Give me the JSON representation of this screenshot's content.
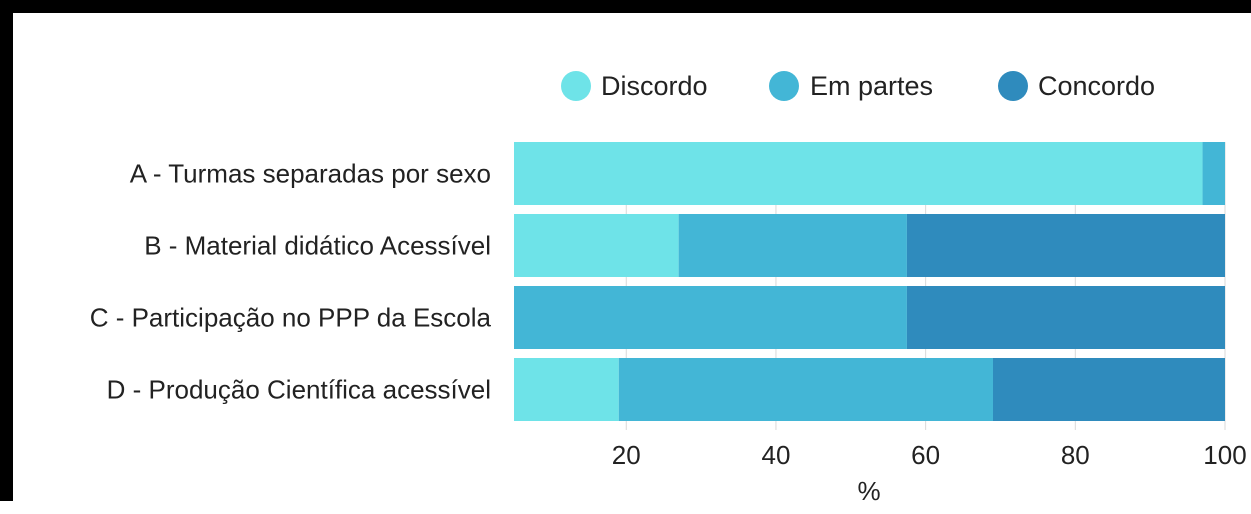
{
  "chart_data": {
    "type": "bar",
    "orientation": "horizontal",
    "stacked": true,
    "xlabel": "%",
    "xlim": [
      5,
      100
    ],
    "x_ticks": [
      20,
      40,
      60,
      80,
      100
    ],
    "grid": true,
    "legend_position": "top",
    "categories": [
      "A - Turmas separadas por sexo",
      "B - Material didático Acessível",
      "C - Participação no PPP da Escola",
      "D - Produção Científica acessível"
    ],
    "series": [
      {
        "name": "Discordo",
        "color": "#6ee3e8",
        "values": [
          92,
          22,
          0,
          14
        ]
      },
      {
        "name": "Em partes",
        "color": "#43b6d6",
        "values": [
          8,
          30.5,
          52.5,
          50
        ]
      },
      {
        "name": "Concordo",
        "color": "#2f8bbd",
        "values": [
          0,
          47.5,
          47.5,
          36
        ]
      }
    ]
  }
}
